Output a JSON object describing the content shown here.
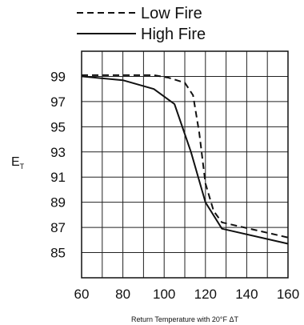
{
  "chart_data": {
    "type": "line",
    "title": "",
    "xlabel": "Return Temperature with 20°F ΔT",
    "ylabel": "E",
    "ylabel_subscript": "T",
    "xlim": [
      60,
      160
    ],
    "ylim": [
      83,
      101
    ],
    "xticks": [
      60,
      80,
      100,
      120,
      140,
      160
    ],
    "yticks": [
      85,
      87,
      89,
      91,
      93,
      95,
      97,
      99
    ],
    "grid": true,
    "legend_position": "top-center",
    "series": [
      {
        "name": "Low Fire",
        "style": "dashed",
        "color": "#111111",
        "x": [
          60,
          80,
          95,
          102,
          110,
          114,
          117,
          120,
          124,
          128,
          160
        ],
        "y": [
          99.1,
          99.1,
          99.1,
          98.9,
          98.5,
          97.5,
          94.5,
          90.5,
          88.3,
          87.4,
          86.2
        ]
      },
      {
        "name": "High Fire",
        "style": "solid",
        "color": "#111111",
        "x": [
          60,
          80,
          95,
          105,
          113,
          120,
          128,
          160
        ],
        "y": [
          99.0,
          98.7,
          98.0,
          96.8,
          93.0,
          89.0,
          86.9,
          85.7
        ]
      }
    ]
  }
}
